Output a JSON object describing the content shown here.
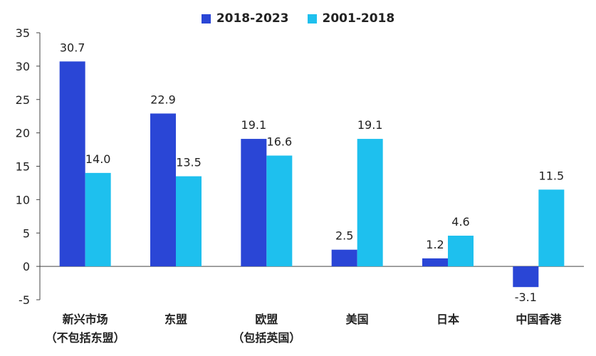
{
  "chart_data": {
    "type": "bar",
    "categories": [
      [
        "新兴市场",
        "（不包括东盟）"
      ],
      [
        "东盟"
      ],
      [
        "欧盟",
        "（包括英国）"
      ],
      [
        "美国"
      ],
      [
        "日本"
      ],
      [
        "中国香港"
      ]
    ],
    "series": [
      {
        "name": "2018-2023",
        "color": "#2a46d6",
        "values": [
          30.7,
          22.9,
          19.1,
          2.5,
          1.2,
          -3.1
        ],
        "labels": [
          "30.7",
          "22.9",
          "19.1",
          "2.5",
          "1.2",
          "-3.1"
        ]
      },
      {
        "name": "2001-2018",
        "color": "#1ec0ee",
        "values": [
          14.0,
          13.5,
          16.6,
          19.1,
          4.6,
          11.5
        ],
        "labels": [
          "14.0",
          "13.5",
          "16.6",
          "19.1",
          "4.6",
          "11.5"
        ]
      }
    ],
    "ylim": [
      -5,
      35
    ],
    "yticks": [
      35,
      30,
      25,
      20,
      15,
      10,
      5,
      0,
      -5
    ],
    "legend_position": "top-center",
    "grid": false
  }
}
